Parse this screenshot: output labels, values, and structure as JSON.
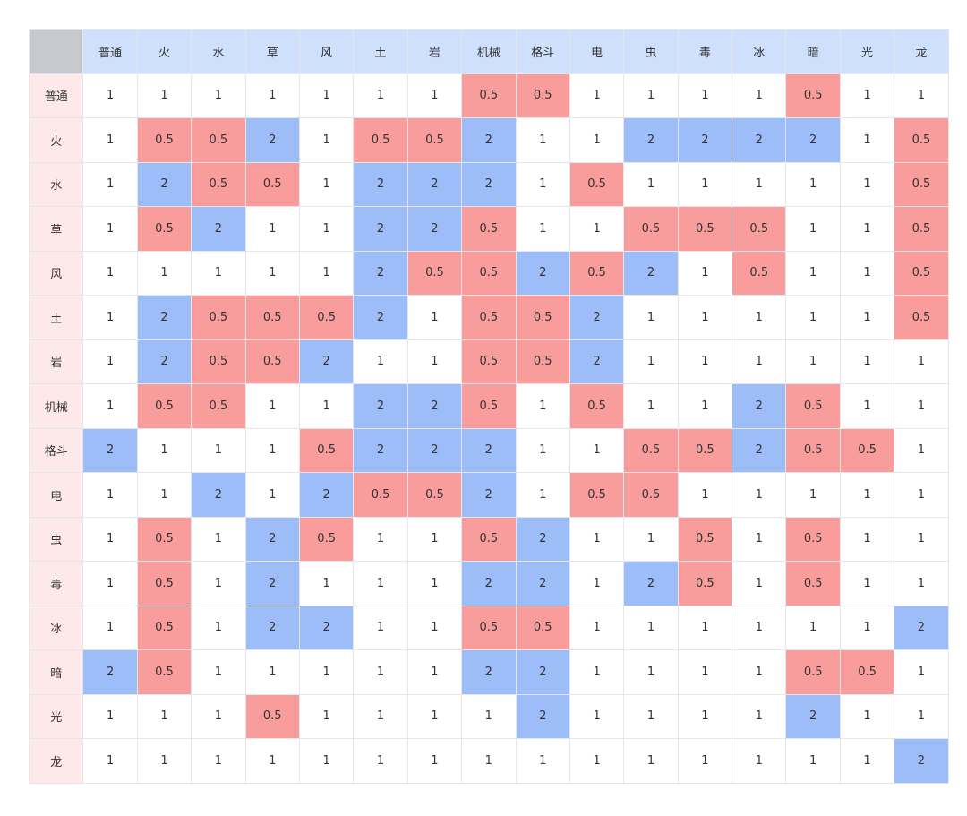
{
  "table": {
    "columns": [
      "普通",
      "火",
      "水",
      "草",
      "风",
      "土",
      "岩",
      "机械",
      "格斗",
      "电",
      "虫",
      "毒",
      "冰",
      "暗",
      "光",
      "龙"
    ],
    "rows": [
      {
        "label": "普通",
        "values": [
          1,
          1,
          1,
          1,
          1,
          1,
          1,
          0.5,
          0.5,
          1,
          1,
          1,
          1,
          0.5,
          1,
          1
        ]
      },
      {
        "label": "火",
        "values": [
          1,
          0.5,
          0.5,
          2,
          1,
          0.5,
          0.5,
          2,
          1,
          1,
          2,
          2,
          2,
          2,
          1,
          0.5
        ]
      },
      {
        "label": "水",
        "values": [
          1,
          2,
          0.5,
          0.5,
          1,
          2,
          2,
          2,
          1,
          0.5,
          1,
          1,
          1,
          1,
          1,
          0.5
        ]
      },
      {
        "label": "草",
        "values": [
          1,
          0.5,
          2,
          1,
          1,
          2,
          2,
          0.5,
          1,
          1,
          0.5,
          0.5,
          0.5,
          1,
          1,
          0.5
        ]
      },
      {
        "label": "风",
        "values": [
          1,
          1,
          1,
          1,
          1,
          2,
          0.5,
          0.5,
          2,
          0.5,
          2,
          1,
          0.5,
          1,
          1,
          0.5
        ]
      },
      {
        "label": "土",
        "values": [
          1,
          2,
          0.5,
          0.5,
          0.5,
          2,
          1,
          0.5,
          0.5,
          2,
          1,
          1,
          1,
          1,
          1,
          0.5
        ]
      },
      {
        "label": "岩",
        "values": [
          1,
          2,
          0.5,
          0.5,
          2,
          1,
          1,
          0.5,
          0.5,
          2,
          1,
          1,
          1,
          1,
          1,
          1
        ]
      },
      {
        "label": "机械",
        "values": [
          1,
          0.5,
          0.5,
          1,
          1,
          2,
          2,
          0.5,
          1,
          0.5,
          1,
          1,
          2,
          0.5,
          1,
          1
        ]
      },
      {
        "label": "格斗",
        "values": [
          2,
          1,
          1,
          1,
          0.5,
          2,
          2,
          2,
          1,
          1,
          0.5,
          0.5,
          2,
          0.5,
          0.5,
          1
        ]
      },
      {
        "label": "电",
        "values": [
          1,
          1,
          2,
          1,
          2,
          0.5,
          0.5,
          2,
          1,
          0.5,
          0.5,
          1,
          1,
          1,
          1,
          1
        ]
      },
      {
        "label": "虫",
        "values": [
          1,
          0.5,
          1,
          2,
          0.5,
          1,
          1,
          0.5,
          2,
          1,
          1,
          0.5,
          1,
          0.5,
          1,
          1
        ]
      },
      {
        "label": "毒",
        "values": [
          1,
          0.5,
          1,
          2,
          1,
          1,
          1,
          2,
          2,
          1,
          2,
          0.5,
          1,
          0.5,
          1,
          1
        ]
      },
      {
        "label": "冰",
        "values": [
          1,
          0.5,
          1,
          2,
          2,
          1,
          1,
          0.5,
          0.5,
          1,
          1,
          1,
          1,
          1,
          1,
          2
        ]
      },
      {
        "label": "暗",
        "values": [
          2,
          0.5,
          1,
          1,
          1,
          1,
          1,
          2,
          2,
          1,
          1,
          1,
          1,
          0.5,
          0.5,
          1
        ]
      },
      {
        "label": "光",
        "values": [
          1,
          1,
          1,
          0.5,
          1,
          1,
          1,
          1,
          2,
          1,
          1,
          1,
          1,
          2,
          1,
          1
        ]
      },
      {
        "label": "龙",
        "values": [
          1,
          1,
          1,
          1,
          1,
          1,
          1,
          1,
          1,
          1,
          1,
          1,
          1,
          1,
          1,
          2
        ]
      }
    ]
  }
}
